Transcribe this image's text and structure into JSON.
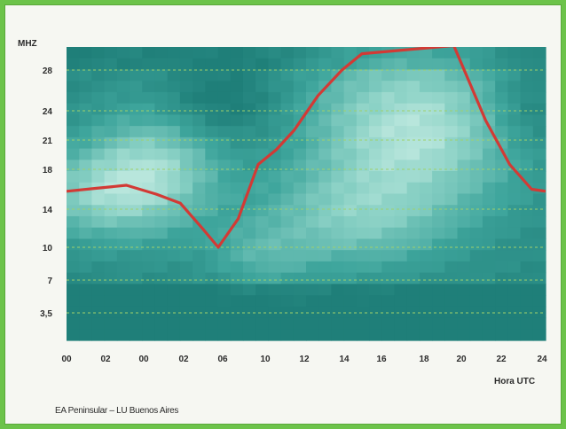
{
  "chart_data": {
    "type": "heatmap",
    "ylabel": "MHZ",
    "xlabel": "Hora UTC",
    "x_ticks": [
      "00",
      "02",
      "00",
      "02",
      "06",
      "10",
      "12",
      "14",
      "16",
      "18",
      "20",
      "22",
      "24"
    ],
    "y_ticks": [
      "28",
      "24",
      "21",
      "18",
      "14",
      "10",
      "7",
      "3,5"
    ],
    "grid_lines": "dashed green at each frequency tick",
    "series": [
      {
        "type": "line",
        "color": "#d23a35",
        "points": [
          [
            0,
            15.8
          ],
          [
            1.5,
            16.1
          ],
          [
            3,
            16.4
          ],
          [
            4.5,
            15.5
          ],
          [
            5.7,
            14.6
          ],
          [
            6.8,
            12.0
          ],
          [
            7.6,
            10.0
          ],
          [
            8.6,
            13.0
          ],
          [
            9.6,
            18.5
          ],
          [
            10.5,
            20.0
          ],
          [
            11.4,
            22.0
          ],
          [
            12.6,
            25.5
          ],
          [
            13.8,
            28.0
          ],
          [
            14.8,
            29.6
          ],
          [
            19.4,
            30.4
          ],
          [
            21.0,
            23.0
          ],
          [
            22.2,
            18.5
          ],
          [
            23.3,
            16.0
          ],
          [
            24,
            15.8
          ]
        ]
      }
    ],
    "heat_colors": {
      "low": "#1f7f79",
      "mid": "#3ea59c",
      "high": "#8ad1c5",
      "peak": "#b8e6dc"
    }
  },
  "caption": "EA Peninsular – LU Buenos Aires"
}
